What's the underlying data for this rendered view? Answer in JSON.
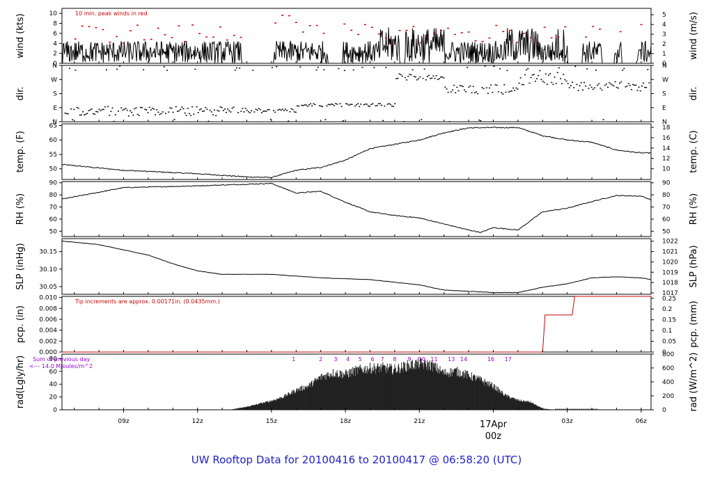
{
  "footer": {
    "title": "UW Rooftop Data for 20100416  to  20100417 @ 06:58:20  (UTC)"
  },
  "colors": {
    "accent": "#cc0000",
    "footer": "#2020cc",
    "purple": "#9900cc",
    "line": "#000000"
  },
  "chart_data": {
    "type": "line",
    "x_time_axis": {
      "tick_labels": [
        "09z",
        "12z",
        "15z",
        "18z",
        "21z",
        "17Apr 00z",
        "03z",
        "06z"
      ],
      "date_label": "17Apr",
      "date_tick": "00z",
      "x_range_hours": [
        6.5,
        30.4
      ],
      "tick_hours": [
        9,
        12,
        15,
        18,
        21,
        24,
        27,
        30
      ]
    },
    "panels": [
      {
        "id": "wind",
        "ylabel_left": "wind (kts)",
        "ylabel_right": "wind (m/s)",
        "left_ticks": [
          "0",
          "2",
          "4",
          "6",
          "8",
          "10"
        ],
        "right_ticks": [
          "0",
          "1",
          "2",
          "3",
          "4",
          "5"
        ],
        "ylim": [
          0,
          11
        ],
        "annotation": "10 min. peak winds in red",
        "series": [
          {
            "values_summary": "gusty 0-10 kts; calm periods near 14z-15z, 17z-18z, 27z-30z"
          }
        ]
      },
      {
        "id": "dir",
        "ylabel_left": "dir.",
        "ylabel_right": "dir.",
        "left_ticks": [
          "N",
          "E",
          "S",
          "W",
          "N"
        ],
        "right_ticks": [
          "N",
          "E",
          "S",
          "W",
          "N"
        ],
        "ylim": [
          0,
          360
        ]
      },
      {
        "id": "temp",
        "ylabel_left": "temp. (F)",
        "ylabel_right": "temp. (C)",
        "left_ticks": [
          "50",
          "55",
          "60",
          "65"
        ],
        "right_ticks": [
          "10",
          "12",
          "14",
          "16",
          "18"
        ],
        "ylim": [
          46.3,
          65.6
        ],
        "x": [
          6.5,
          9,
          12,
          14,
          15,
          16,
          17,
          18,
          19,
          20,
          21,
          22,
          23,
          24,
          25,
          26,
          27,
          28,
          29,
          30,
          30.4
        ],
        "y": [
          51.5,
          49.5,
          48.3,
          47.2,
          47.0,
          49.5,
          50.5,
          53.0,
          57.0,
          58.5,
          60.0,
          62.5,
          64.2,
          64.3,
          64.3,
          61.5,
          60.0,
          59.2,
          56.5,
          55.5,
          55.5
        ]
      },
      {
        "id": "rh",
        "ylabel_left": "RH (%)",
        "ylabel_right": "RH (%)",
        "left_ticks": [
          "50",
          "60",
          "70",
          "80",
          "90"
        ],
        "right_ticks": [
          "50",
          "60",
          "70",
          "80",
          "90"
        ],
        "ylim": [
          45.6,
          91
        ],
        "x": [
          6.5,
          9,
          12,
          15,
          16,
          17,
          18,
          19,
          20,
          21,
          22,
          23,
          23.5,
          24,
          25,
          26,
          27,
          28,
          29,
          30,
          30.4
        ],
        "y": [
          76.5,
          86.0,
          87.5,
          89.5,
          81.5,
          83.0,
          74.0,
          66.0,
          63.0,
          61.0,
          56.0,
          51.0,
          49.0,
          53.0,
          51.0,
          66.0,
          69.0,
          74.5,
          79.5,
          79.0,
          76.0
        ]
      },
      {
        "id": "slp",
        "ylabel_left": "SLP (inHg)",
        "ylabel_right": "SLP (hPa)",
        "left_ticks": [
          "30.05",
          "30.10",
          "30.15"
        ],
        "right_ticks": [
          "1017",
          "1018",
          "1019",
          "1020",
          "1021",
          "1022"
        ],
        "ylim": [
          30.028,
          30.187
        ],
        "x": [
          6.5,
          8,
          10,
          11,
          12,
          13,
          15,
          17,
          19,
          21,
          22,
          24,
          25,
          26,
          27,
          28,
          29,
          30,
          30.4
        ],
        "y": [
          30.18,
          30.17,
          30.14,
          30.115,
          30.095,
          30.085,
          30.085,
          30.075,
          30.07,
          30.055,
          30.04,
          30.033,
          30.033,
          30.048,
          30.058,
          30.075,
          30.078,
          30.075,
          30.07
        ]
      },
      {
        "id": "pcp",
        "ylabel_left": "pcp. (in)",
        "ylabel_right": "pcp. (mm)",
        "left_ticks": [
          "0.000",
          "0.002",
          "0.004",
          "0.006",
          "0.008",
          "0.010"
        ],
        "right_ticks": [
          "0",
          "0.05",
          "0.1",
          "0.15",
          "0.2",
          "0.25"
        ],
        "ylim": [
          0,
          0.0102
        ],
        "annotation": "Tip increments are approx. 0.00171in. (0.0435mm.)",
        "x": [
          6.5,
          26.0,
          26.1,
          27.2,
          27.3,
          30.4
        ],
        "y": [
          0,
          0,
          0.0068,
          0.0068,
          0.0102,
          0.0102
        ]
      },
      {
        "id": "rad",
        "ylabel_left": "rad(Lgly/hr)",
        "ylabel_right": "rad (W/m^2)",
        "left_ticks": [
          "0",
          "20",
          "40",
          "60",
          "80"
        ],
        "right_ticks": [
          "0",
          "200",
          "400",
          "600",
          "800"
        ],
        "ylim": [
          0,
          87
        ],
        "annotation_lines": [
          "Sum of previous day",
          "<--- 14.0 MJoules/m^2"
        ],
        "hour_labels": [
          "1",
          "2",
          "3",
          "4",
          "5",
          "6",
          "7",
          "8",
          "9",
          "10",
          "11",
          "13",
          "14",
          "16",
          "17"
        ],
        "x": [
          13.3,
          14,
          15,
          15.5,
          16,
          16.5,
          17,
          17.5,
          18,
          18.5,
          19,
          19.5,
          20,
          20.5,
          21,
          21.5,
          22,
          22.5,
          23,
          23.5,
          24,
          24.5,
          25,
          25.5,
          26,
          26.5
        ],
        "y": [
          0,
          5,
          15,
          22,
          33,
          40,
          55,
          62,
          60,
          67,
          70,
          71,
          68,
          74,
          78,
          75,
          62,
          65,
          58,
          50,
          40,
          24,
          16,
          13,
          2,
          0
        ]
      }
    ]
  }
}
